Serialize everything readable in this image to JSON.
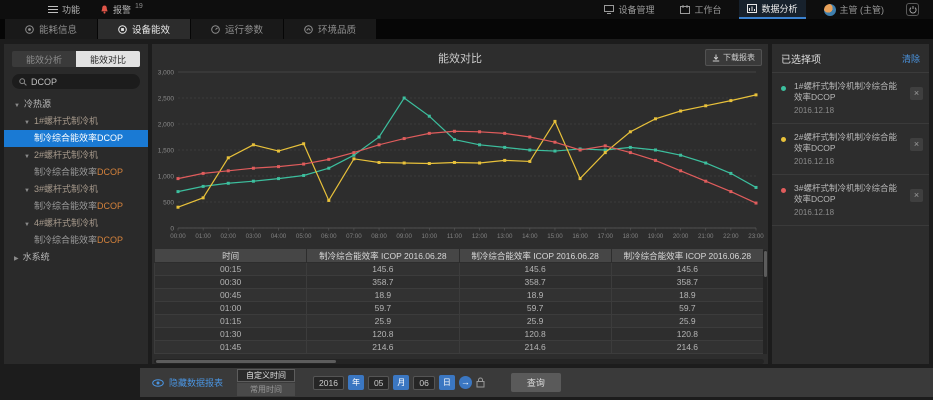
{
  "topbar": {
    "menu_label": "功能",
    "alarm_label": "报警",
    "alarm_count": "19",
    "nav": [
      {
        "label": "设备管理"
      },
      {
        "label": "工作台"
      },
      {
        "label": "数据分析"
      }
    ],
    "user_label": "主管 (主管)"
  },
  "tabs": [
    {
      "label": "能耗信息"
    },
    {
      "label": "设备能效"
    },
    {
      "label": "运行参数"
    },
    {
      "label": "环境品质"
    }
  ],
  "sidebar": {
    "toggle": {
      "analysis": "能效分析",
      "compare": "能效对比"
    },
    "search_value": "DCOP",
    "tree": [
      {
        "arrow": "▼",
        "label": "冷热源"
      },
      {
        "arrow": "▼",
        "label": "1#螺杆式制冷机"
      },
      {
        "label": "制冷综合能效率",
        "suffix": "DCOP"
      },
      {
        "arrow": "▼",
        "label": "2#螺杆式制冷机"
      },
      {
        "label": "制冷综合能效率",
        "suffix": "DCOP"
      },
      {
        "arrow": "▼",
        "label": "3#螺杆式制冷机"
      },
      {
        "label": "制冷综合能效率",
        "suffix": "DCOP"
      },
      {
        "arrow": "▼",
        "label": "4#螺杆式制冷机"
      },
      {
        "label": "制冷综合能效率",
        "suffix": "DCOP"
      },
      {
        "arrow": "▶",
        "label": "水系统"
      }
    ]
  },
  "chart": {
    "title": "能效对比",
    "download_label": "下载报表"
  },
  "chart_data": {
    "type": "line",
    "title": "能效对比",
    "xlabel": "",
    "ylabel": "",
    "ylim": [
      0,
      3000
    ],
    "grid": true,
    "legend_position": "right-panel",
    "yticks": [
      "0",
      "500",
      "1,000",
      "1,500",
      "2,000",
      "2,500",
      "3,000"
    ],
    "x": [
      "00:00",
      "01:00",
      "02:00",
      "03:00",
      "04:00",
      "05:00",
      "06:00",
      "07:00",
      "08:00",
      "09:00",
      "10:00",
      "11:00",
      "12:00",
      "13:00",
      "14:00",
      "15:00",
      "16:00",
      "17:00",
      "18:00",
      "19:00",
      "20:00",
      "21:00",
      "22:00",
      "23:00"
    ],
    "series": [
      {
        "name": "1#螺杆式制冷机制冷综合能效率DCOP",
        "color": "#3cbf9e",
        "values": [
          700,
          800,
          860,
          900,
          950,
          1010,
          1150,
          1400,
          1750,
          2500,
          2150,
          1700,
          1600,
          1550,
          1500,
          1480,
          1520,
          1500,
          1550,
          1500,
          1400,
          1250,
          1050,
          780
        ]
      },
      {
        "name": "2#螺杆式制冷机制冷综合能效率DCOP",
        "color": "#e8c13a",
        "values": [
          400,
          580,
          1350,
          1600,
          1480,
          1620,
          530,
          1330,
          1260,
          1250,
          1240,
          1260,
          1250,
          1300,
          1280,
          2050,
          950,
          1450,
          1850,
          2100,
          2250,
          2350,
          2450,
          2560
        ]
      },
      {
        "name": "3#螺杆式制冷机制冷综合能效率DCOP",
        "color": "#e05c5c",
        "values": [
          950,
          1050,
          1100,
          1150,
          1180,
          1230,
          1320,
          1450,
          1600,
          1720,
          1820,
          1860,
          1850,
          1820,
          1750,
          1650,
          1500,
          1580,
          1450,
          1300,
          1100,
          900,
          700,
          480
        ]
      }
    ]
  },
  "table": {
    "columns": [
      "时间",
      "制冷综合能效率 ICOP 2016.06.28",
      "制冷综合能效率 ICOP 2016.06.28",
      "制冷综合能效率 ICOP 2016.06.28"
    ],
    "rows": [
      [
        "00:15",
        "145.6",
        "145.6",
        "145.6"
      ],
      [
        "00:30",
        "358.7",
        "358.7",
        "358.7"
      ],
      [
        "00:45",
        "18.9",
        "18.9",
        "18.9"
      ],
      [
        "01:00",
        "59.7",
        "59.7",
        "59.7"
      ],
      [
        "01:15",
        "25.9",
        "25.9",
        "25.9"
      ],
      [
        "01:30",
        "120.8",
        "120.8",
        "120.8"
      ],
      [
        "01:45",
        "214.6",
        "214.6",
        "214.6"
      ]
    ]
  },
  "selected_panel": {
    "title": "已选择项",
    "clear_label": "清除",
    "close_glyph": "×",
    "items": [
      {
        "color": "#3cbf9e",
        "label": "1#螺杆式制冷机制冷综合能效率DCOP",
        "date": "2016.12.18"
      },
      {
        "color": "#e8c13a",
        "label": "2#螺杆式制冷机制冷综合能效率DCOP",
        "date": "2016.12.18"
      },
      {
        "color": "#e05c5c",
        "label": "3#螺杆式制冷机制冷综合能效率DCOP",
        "date": "2016.12.18"
      }
    ]
  },
  "bottombar": {
    "hide_table_label": "隐藏数据报表",
    "custom_time_label": "自定义时间",
    "common_time_label": "常用时间",
    "year": "2016",
    "year_unit": "年",
    "month": "05",
    "month_unit": "月",
    "day": "06",
    "day_unit": "日",
    "go_glyph": "→",
    "query_label": "查询"
  },
  "colors": {
    "accent_blue": "#3b82d0",
    "selected_row": "#1a7ad4",
    "dcop_orange": "#d4823c",
    "series_green": "#3cbf9e",
    "series_yellow": "#e8c13a",
    "series_red": "#e05c5c"
  }
}
